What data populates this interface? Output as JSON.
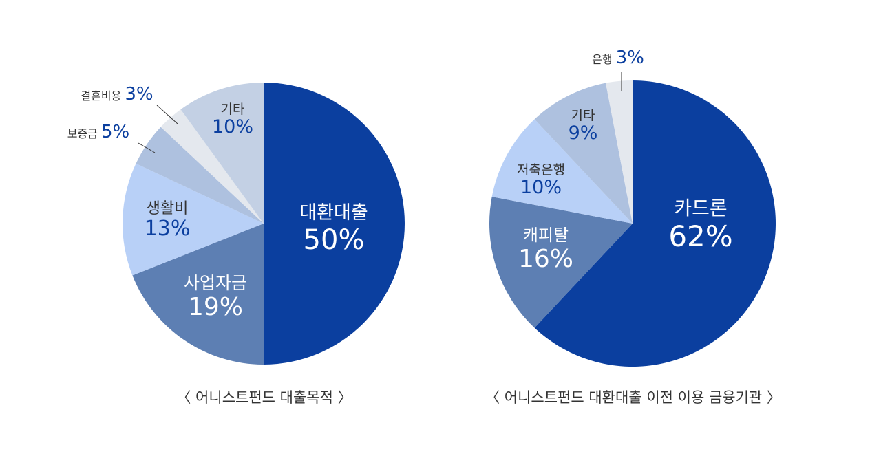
{
  "chart_data": [
    {
      "type": "pie",
      "caption": "〈 어니스트펀드 대출목적 〉",
      "slices": [
        {
          "label": "대환대출",
          "value": 50,
          "display": "50%",
          "color": "#0b3f9f"
        },
        {
          "label": "사업자금",
          "value": 19,
          "display": "19%",
          "color": "#5d7fb3"
        },
        {
          "label": "생활비",
          "value": 13,
          "display": "13%",
          "color": "#b8d0f7"
        },
        {
          "label": "보증금",
          "value": 5,
          "display": "5%",
          "color": "#aec1df"
        },
        {
          "label": "결혼비용",
          "value": 3,
          "display": "3%",
          "color": "#e4e8ee"
        },
        {
          "label": "기타",
          "value": 10,
          "display": "10%",
          "color": "#c3d0e4"
        }
      ]
    },
    {
      "type": "pie",
      "caption": "〈 어니스트펀드 대환대출 이전 이용 금융기관 〉",
      "slices": [
        {
          "label": "카드론",
          "value": 62,
          "display": "62%",
          "color": "#0b3f9f"
        },
        {
          "label": "캐피탈",
          "value": 16,
          "display": "16%",
          "color": "#5d7fb3"
        },
        {
          "label": "저축은행",
          "value": 10,
          "display": "10%",
          "color": "#b8d0f7"
        },
        {
          "label": "기타",
          "value": 9,
          "display": "9%",
          "color": "#aec1df"
        },
        {
          "label": "은행",
          "value": 3,
          "display": "3%",
          "color": "#e4e8ee"
        }
      ]
    }
  ]
}
